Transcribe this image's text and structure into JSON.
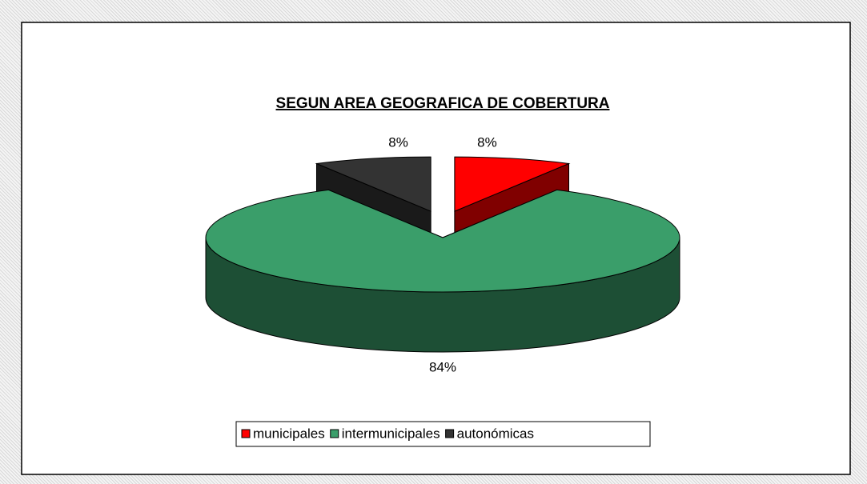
{
  "chart_data": {
    "type": "pie",
    "title": "SEGUN AREA GEOGRAFICA DE COBERTURA",
    "categories": [
      "municipales",
      "intermunicipales",
      "autonómicas"
    ],
    "values": [
      8,
      84,
      8
    ],
    "value_labels": [
      "8%",
      "84%",
      "8%"
    ],
    "colors": [
      "#ff0000",
      "#3a9e6a",
      "#333333"
    ],
    "legend": "bottom"
  }
}
